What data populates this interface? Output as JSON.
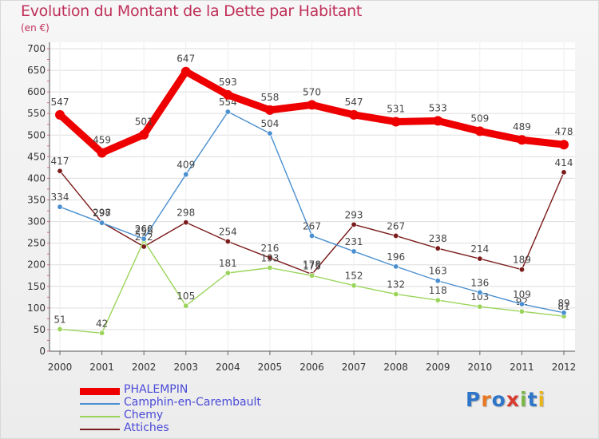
{
  "title": "Evolution du Montant de la Dette par Habitant",
  "subtitle": "(en €)",
  "logo": {
    "text": "Proxiti",
    "colors": [
      "#2f76c8",
      "#e87722",
      "#2f76c8",
      "#d93a2f",
      "#7ab648",
      "#2f76c8",
      "#e8b422"
    ]
  },
  "chart_data": {
    "type": "line",
    "x": [
      "2000",
      "2001",
      "2002",
      "2003",
      "2004",
      "2005",
      "2006",
      "2007",
      "2008",
      "2009",
      "2010",
      "2011",
      "2012"
    ],
    "ylim": [
      0,
      700
    ],
    "yticks": [
      0,
      50,
      100,
      150,
      200,
      250,
      300,
      350,
      400,
      450,
      500,
      550,
      600,
      650,
      700
    ],
    "grid": "y",
    "legend_position": "bottom",
    "series": [
      {
        "name": "PHALEMPIN",
        "color": "#ee0000",
        "emphasis": true,
        "values": [
          547,
          459,
          501,
          647,
          593,
          558,
          570,
          547,
          531,
          533,
          509,
          489,
          478
        ]
      },
      {
        "name": "Camphin-en-Carembault",
        "color": "#4a8fcf",
        "values": [
          334,
          297,
          260,
          409,
          554,
          504,
          267,
          231,
          196,
          163,
          136,
          109,
          89
        ]
      },
      {
        "name": "Chemy",
        "color": "#9ad45a",
        "values": [
          51,
          42,
          256,
          105,
          181,
          193,
          175,
          152,
          132,
          118,
          103,
          92,
          81
        ]
      },
      {
        "name": "Attiches",
        "color": "#7a1a1a",
        "values": [
          417,
          298,
          242,
          298,
          254,
          216,
          178,
          293,
          267,
          238,
          214,
          189,
          414
        ]
      }
    ]
  }
}
